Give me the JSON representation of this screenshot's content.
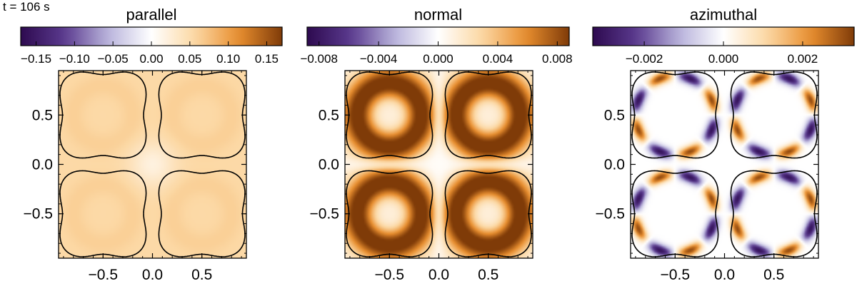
{
  "time_label": "t = 106 s",
  "chart_data": [
    {
      "type": "heatmap",
      "title": "parallel",
      "colorbar": {
        "min": -0.17,
        "max": 0.17,
        "ticks": [
          -0.15,
          -0.1,
          -0.05,
          0.0,
          0.05,
          0.1,
          0.15
        ],
        "tick_labels": [
          "−0.15",
          "−0.10",
          "−0.05",
          "0.00",
          "0.05",
          "0.10",
          "0.15"
        ]
      },
      "xlim": [
        -0.95,
        0.95
      ],
      "ylim": [
        -0.95,
        0.95
      ],
      "xticks": [
        -0.5,
        0.0,
        0.5
      ],
      "xtick_labels": [
        "−0.5",
        "0.0",
        "0.5"
      ],
      "yticks": [
        -0.5,
        0.0,
        0.5
      ],
      "ytick_labels": [
        "−0.5",
        "0.0",
        "0.5"
      ],
      "field": "parallel"
    },
    {
      "type": "heatmap",
      "title": "normal",
      "colorbar": {
        "min": -0.0088,
        "max": 0.0088,
        "ticks": [
          -0.008,
          -0.004,
          0.0,
          0.004,
          0.008
        ],
        "tick_labels": [
          "−0.008",
          "−0.004",
          "0.000",
          "0.004",
          "0.008"
        ]
      },
      "xlim": [
        -0.95,
        0.95
      ],
      "ylim": [
        -0.95,
        0.95
      ],
      "xticks": [
        -0.5,
        0.0,
        0.5
      ],
      "xtick_labels": [
        "−0.5",
        "0.0",
        "0.5"
      ],
      "yticks": [
        -0.5,
        0.0,
        0.5
      ],
      "ytick_labels": [
        "−0.5",
        "0.0",
        "0.5"
      ],
      "field": "normal"
    },
    {
      "type": "heatmap",
      "title": "azimuthal",
      "colorbar": {
        "min": -0.0033,
        "max": 0.0033,
        "ticks": [
          -0.002,
          0.0,
          0.002
        ],
        "tick_labels": [
          "−0.002",
          "0.000",
          "0.002"
        ]
      },
      "xlim": [
        -0.95,
        0.95
      ],
      "ylim": [
        -0.95,
        0.95
      ],
      "xticks": [
        -0.5,
        0.0,
        0.5
      ],
      "xtick_labels": [
        "−0.5",
        "0.0",
        "0.5"
      ],
      "yticks": [
        -0.5,
        0.0,
        0.5
      ],
      "ytick_labels": [
        "−0.5",
        "0.0",
        "0.5"
      ],
      "field": "azimuthal"
    }
  ],
  "colormap": [
    "#2d0a4f",
    "#5a3a8e",
    "#b9b4dc",
    "#ffffff",
    "#fcd8a4",
    "#e88e2f",
    "#7f3b08"
  ],
  "contour_color": "#000000"
}
